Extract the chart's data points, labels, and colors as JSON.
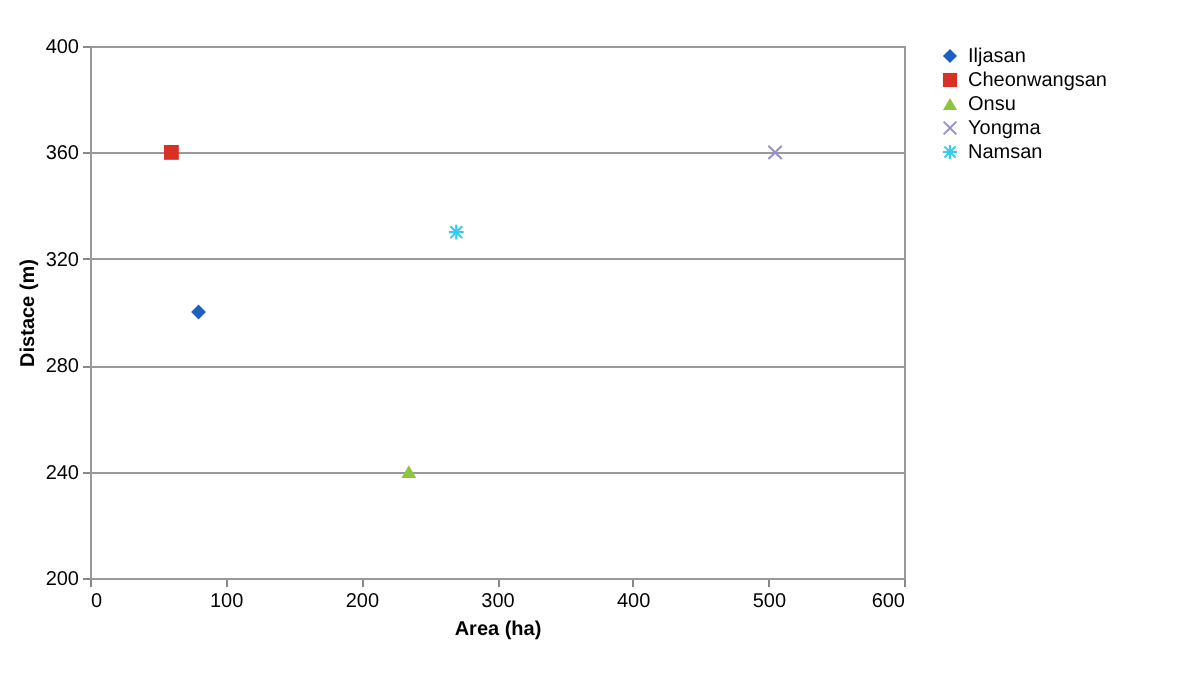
{
  "chart_data": {
    "type": "scatter",
    "xlabel": "Area (ha)",
    "ylabel": "Distace (m)",
    "xlim": [
      0,
      600
    ],
    "xticks": [
      0,
      100,
      200,
      300,
      400,
      500,
      600
    ],
    "ylim": [
      200,
      400
    ],
    "yticks": [
      200,
      240,
      280,
      320,
      360,
      400
    ],
    "grid": "y",
    "legend": "right",
    "series": [
      {
        "name": "Iljasan",
        "color": "#1f5fbf",
        "marker": "diamond",
        "x": [
          80
        ],
        "values": [
          300
        ]
      },
      {
        "name": "Cheonwangsan",
        "color": "#d93025",
        "marker": "square",
        "x": [
          60
        ],
        "values": [
          360
        ]
      },
      {
        "name": "Onsu",
        "color": "#8cc63f",
        "marker": "triangle",
        "x": [
          235
        ],
        "values": [
          240
        ]
      },
      {
        "name": "Yongma",
        "color": "#9b8fc9",
        "marker": "cross",
        "x": [
          505
        ],
        "values": [
          360
        ]
      },
      {
        "name": "Namsan",
        "color": "#33ccee",
        "marker": "star",
        "x": [
          270
        ],
        "values": [
          330
        ]
      }
    ]
  }
}
